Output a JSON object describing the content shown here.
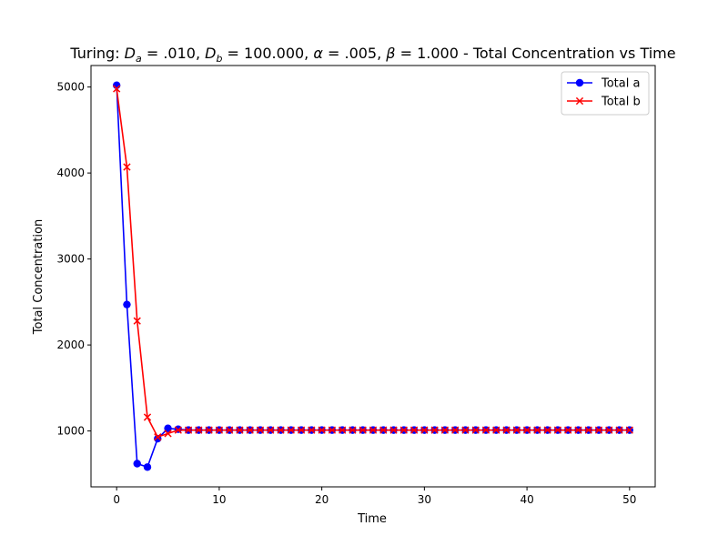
{
  "chart_data": {
    "type": "line",
    "title_parts": [
      {
        "text": "Turing: ",
        "italic": false
      },
      {
        "text": "D",
        "italic": true
      },
      {
        "text": "a",
        "italic": true,
        "sub": true
      },
      {
        "text": " = .010, ",
        "italic": false
      },
      {
        "text": "D",
        "italic": true
      },
      {
        "text": "b",
        "italic": true,
        "sub": true
      },
      {
        "text": " = 100.000, ",
        "italic": false
      },
      {
        "text": "α",
        "italic": true
      },
      {
        "text": " = .005, ",
        "italic": false
      },
      {
        "text": "β",
        "italic": true
      },
      {
        "text": " = 1.000 - Total Concentration vs Time",
        "italic": false
      }
    ],
    "xlabel": "Time",
    "ylabel": "Total Concentration",
    "xlim": [
      -2.5,
      52.5
    ],
    "ylim": [
      350,
      5250
    ],
    "xticks": [
      0,
      10,
      20,
      30,
      40,
      50
    ],
    "yticks": [
      1000,
      2000,
      3000,
      4000,
      5000
    ],
    "grid": false,
    "legend_position": "top-right",
    "x": [
      0,
      1,
      2,
      3,
      4,
      5,
      6,
      7,
      8,
      9,
      10,
      11,
      12,
      13,
      14,
      15,
      16,
      17,
      18,
      19,
      20,
      21,
      22,
      23,
      24,
      25,
      26,
      27,
      28,
      29,
      30,
      31,
      32,
      33,
      34,
      35,
      36,
      37,
      38,
      39,
      40,
      41,
      42,
      43,
      44,
      45,
      46,
      47,
      48,
      49,
      50
    ],
    "series": [
      {
        "name": "Total a",
        "color": "#0000ff",
        "marker": "circle",
        "values": [
          5020,
          2470,
          620,
          580,
          910,
          1030,
          1020,
          1010,
          1010,
          1010,
          1010,
          1010,
          1010,
          1010,
          1010,
          1010,
          1010,
          1010,
          1010,
          1010,
          1010,
          1010,
          1010,
          1010,
          1010,
          1010,
          1010,
          1010,
          1010,
          1010,
          1010,
          1010,
          1010,
          1010,
          1010,
          1010,
          1010,
          1010,
          1010,
          1010,
          1010,
          1010,
          1010,
          1010,
          1010,
          1010,
          1010,
          1010,
          1010,
          1010,
          1010
        ]
      },
      {
        "name": "Total b",
        "color": "#ff0000",
        "marker": "x",
        "values": [
          4980,
          4070,
          2280,
          1160,
          930,
          970,
          1010,
          1010,
          1010,
          1010,
          1010,
          1010,
          1010,
          1010,
          1010,
          1010,
          1010,
          1010,
          1010,
          1010,
          1010,
          1010,
          1010,
          1010,
          1010,
          1010,
          1010,
          1010,
          1010,
          1010,
          1010,
          1010,
          1010,
          1010,
          1010,
          1010,
          1010,
          1010,
          1010,
          1010,
          1010,
          1010,
          1010,
          1010,
          1010,
          1010,
          1010,
          1010,
          1010,
          1010,
          1010
        ]
      }
    ]
  }
}
